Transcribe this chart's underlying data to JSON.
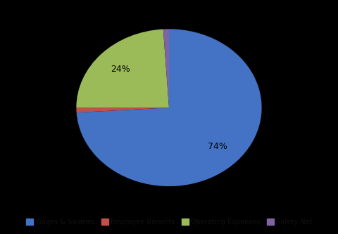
{
  "labels": [
    "Wages & Salaries",
    "Employee Benefits",
    "Operating Expenses",
    "Safety Net"
  ],
  "values": [
    74,
    1,
    24,
    1
  ],
  "colors": [
    "#4472C4",
    "#C0504D",
    "#9BBB59",
    "#8064A2"
  ],
  "background_color": "#000000",
  "text_color": "#000000",
  "figsize": [
    4.8,
    3.33
  ],
  "dpi": 100,
  "startangle": 90,
  "pctdistance": 0.72
}
